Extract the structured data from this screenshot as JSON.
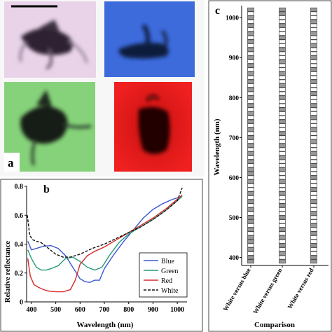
{
  "panels": {
    "a": {
      "label": "a",
      "tiles": [
        {
          "name": "white",
          "bg": "#e9d3e9"
        },
        {
          "name": "blue",
          "bg": "#3d6bdc"
        },
        {
          "name": "green",
          "bg": "#86d27a"
        },
        {
          "name": "red",
          "bg": "#e11b1b"
        }
      ]
    },
    "b": {
      "label": "b"
    },
    "c": {
      "label": "c"
    }
  },
  "chart_data": [
    {
      "type": "line",
      "panel": "b",
      "xlabel": "Wavelength (nm)",
      "ylabel": "Relative reflectance",
      "xlim": [
        380,
        1040
      ],
      "ylim": [
        0,
        0.8
      ],
      "xticks": [
        400,
        500,
        600,
        700,
        800,
        900,
        1000
      ],
      "yticks": [
        0,
        0.2,
        0.4,
        0.6,
        0.8
      ],
      "ytick_labels": [
        "0",
        "0.2",
        "0.4",
        "0.6",
        "0.8"
      ],
      "legend_position": "bottom-right",
      "series": [
        {
          "name": "Blue",
          "color": "#3a56d4",
          "dash": "solid",
          "x": [
            385,
            400,
            420,
            450,
            480,
            510,
            540,
            570,
            600,
            620,
            640,
            660,
            680,
            700,
            740,
            780,
            820,
            860,
            900,
            940,
            980,
            1020
          ],
          "y": [
            0.42,
            0.36,
            0.37,
            0.385,
            0.39,
            0.37,
            0.32,
            0.24,
            0.16,
            0.14,
            0.135,
            0.15,
            0.15,
            0.23,
            0.33,
            0.42,
            0.5,
            0.58,
            0.64,
            0.68,
            0.71,
            0.73
          ]
        },
        {
          "name": "Green",
          "color": "#219a78",
          "dash": "solid",
          "x": [
            385,
            400,
            420,
            440,
            460,
            480,
            510,
            540,
            570,
            600,
            630,
            660,
            690,
            720,
            760,
            800,
            850,
            900,
            950,
            1000,
            1020
          ],
          "y": [
            0.36,
            0.3,
            0.24,
            0.22,
            0.22,
            0.23,
            0.25,
            0.3,
            0.31,
            0.28,
            0.24,
            0.22,
            0.24,
            0.32,
            0.41,
            0.47,
            0.52,
            0.57,
            0.63,
            0.7,
            0.73
          ]
        },
        {
          "name": "Red",
          "color": "#d62a2a",
          "dash": "solid",
          "x": [
            385,
            395,
            410,
            430,
            450,
            470,
            500,
            530,
            560,
            580,
            600,
            630,
            660,
            700,
            750,
            800,
            850,
            900,
            950,
            1000,
            1020
          ],
          "y": [
            0.3,
            0.18,
            0.12,
            0.1,
            0.085,
            0.075,
            0.07,
            0.07,
            0.085,
            0.15,
            0.26,
            0.32,
            0.35,
            0.38,
            0.43,
            0.48,
            0.53,
            0.58,
            0.64,
            0.71,
            0.74
          ]
        },
        {
          "name": "White",
          "color": "#111111",
          "dash": "dashed",
          "x": [
            383,
            393,
            405,
            420,
            440,
            470,
            500,
            530,
            560,
            600,
            650,
            700,
            750,
            800,
            850,
            900,
            950,
            1000,
            1020
          ],
          "y": [
            0.6,
            0.46,
            0.43,
            0.42,
            0.41,
            0.37,
            0.33,
            0.31,
            0.31,
            0.33,
            0.37,
            0.4,
            0.44,
            0.48,
            0.52,
            0.57,
            0.63,
            0.7,
            0.79
          ]
        }
      ]
    },
    {
      "type": "scatter",
      "panel": "c",
      "xlabel": "Comparison",
      "ylabel": "Wavelength (nm)",
      "categories": [
        "White versus blue",
        "White versus green",
        "White versus red"
      ],
      "ylim": [
        380,
        1030
      ],
      "yticks": [
        400,
        500,
        600,
        700,
        800,
        900,
        1000
      ],
      "marker": "square",
      "y_points": [
        390,
        400,
        410,
        420,
        430,
        440,
        450,
        460,
        470,
        480,
        490,
        500,
        510,
        520,
        530,
        540,
        550,
        560,
        570,
        580,
        590,
        600,
        610,
        620,
        630,
        640,
        650,
        660,
        670,
        680,
        690,
        700,
        710,
        720,
        730,
        740,
        750,
        760,
        770,
        780,
        790,
        800,
        810,
        820,
        830,
        840,
        850,
        860,
        870,
        880,
        890,
        900,
        910,
        920,
        930,
        940,
        950,
        960,
        970,
        980,
        990,
        1000,
        1010,
        1020
      ],
      "filled": {
        "White versus blue": [
          390,
          400,
          420,
          440,
          450,
          470,
          490,
          500,
          520,
          540,
          560,
          590,
          610,
          620,
          640,
          660,
          680,
          700,
          720,
          740,
          760,
          780,
          800,
          820,
          840,
          860,
          880,
          900,
          920,
          940,
          960,
          980,
          1000,
          1020
        ],
        "White versus green": [
          390,
          410,
          430,
          450,
          470,
          500,
          530,
          560,
          590,
          620,
          650,
          680,
          710,
          740,
          770,
          800,
          830,
          860,
          890,
          920,
          950,
          980,
          1010,
          1020
        ],
        "White versus red": [
          390,
          400,
          430,
          460,
          480,
          510,
          540,
          570,
          600,
          630,
          660,
          690,
          720,
          750,
          780,
          810,
          840,
          870,
          900,
          930,
          960,
          990,
          1020
        ]
      }
    }
  ]
}
